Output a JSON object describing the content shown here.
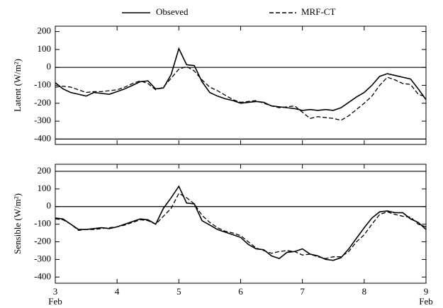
{
  "chart_data": [
    {
      "type": "line",
      "ylabel": "Latent (W/m²)",
      "legend": true,
      "x": [
        3,
        3.125,
        3.25,
        3.375,
        3.5,
        3.625,
        3.75,
        3.875,
        4,
        4.125,
        4.25,
        4.375,
        4.5,
        4.625,
        4.75,
        4.875,
        5,
        5.125,
        5.25,
        5.375,
        5.5,
        5.625,
        5.75,
        5.875,
        6,
        6.125,
        6.25,
        6.375,
        6.5,
        6.625,
        6.75,
        6.875,
        7,
        7.125,
        7.25,
        7.375,
        7.5,
        7.625,
        7.75,
        7.875,
        8,
        8.125,
        8.25,
        8.375,
        8.5,
        8.625,
        8.75,
        8.875,
        9
      ],
      "xlim": [
        3,
        9
      ],
      "xticks": [
        3,
        4,
        5,
        6,
        7,
        8,
        9
      ],
      "ylim": [
        -430,
        230
      ],
      "yticks": [
        200,
        100,
        0,
        -100,
        -200,
        -300,
        -400
      ],
      "hlines": [
        0,
        -400
      ],
      "series": [
        {
          "name": "Obseved",
          "color": "#000000",
          "dash": false,
          "values": [
            -85,
            -120,
            -140,
            -150,
            -160,
            -140,
            -145,
            -150,
            -135,
            -120,
            -100,
            -80,
            -75,
            -120,
            -115,
            -40,
            105,
            15,
            10,
            -80,
            -140,
            -160,
            -175,
            -185,
            -200,
            -195,
            -190,
            -195,
            -215,
            -220,
            -225,
            -230,
            -240,
            -235,
            -240,
            -235,
            -240,
            -225,
            -195,
            -165,
            -140,
            -100,
            -50,
            -35,
            -45,
            -55,
            -65,
            -120,
            -180
          ]
        },
        {
          "name": "MRF-CT",
          "color": "#000000",
          "dash": true,
          "values": [
            -110,
            -105,
            -110,
            -125,
            -140,
            -135,
            -135,
            -130,
            -125,
            -110,
            -90,
            -75,
            -90,
            -125,
            -110,
            -60,
            -10,
            5,
            -20,
            -70,
            -110,
            -130,
            -155,
            -180,
            -195,
            -190,
            -185,
            -200,
            -215,
            -225,
            -220,
            -215,
            -250,
            -285,
            -275,
            -280,
            -285,
            -295,
            -270,
            -235,
            -200,
            -160,
            -100,
            -55,
            -70,
            -90,
            -95,
            -150,
            -165
          ]
        }
      ]
    },
    {
      "type": "line",
      "ylabel": "Sensible (W/m²)",
      "x": [
        3,
        3.125,
        3.25,
        3.375,
        3.5,
        3.625,
        3.75,
        3.875,
        4,
        4.125,
        4.25,
        4.375,
        4.5,
        4.625,
        4.75,
        4.875,
        5,
        5.125,
        5.25,
        5.375,
        5.5,
        5.625,
        5.75,
        5.875,
        6,
        6.125,
        6.25,
        6.375,
        6.5,
        6.625,
        6.75,
        6.875,
        7,
        7.125,
        7.25,
        7.375,
        7.5,
        7.625,
        7.75,
        7.875,
        8,
        8.125,
        8.25,
        8.375,
        8.5,
        8.625,
        8.75,
        8.875,
        9
      ],
      "xlim": [
        3,
        9
      ],
      "xticks": [
        3,
        4,
        5,
        6,
        7,
        8,
        9
      ],
      "x_month_labels": [
        {
          "x": 3,
          "label": "Feb"
        },
        {
          "x": 9,
          "label": "Feb"
        }
      ],
      "ylim": [
        -435,
        240
      ],
      "yticks": [
        200,
        100,
        0,
        -100,
        -200,
        -300,
        -400
      ],
      "hlines": [
        200,
        0
      ],
      "series": [
        {
          "color": "#000000",
          "dash": false,
          "values": [
            -65,
            -70,
            -100,
            -130,
            -130,
            -125,
            -120,
            -125,
            -115,
            -100,
            -85,
            -70,
            -75,
            -100,
            -10,
            50,
            115,
            20,
            15,
            -80,
            -105,
            -130,
            -145,
            -160,
            -175,
            -215,
            -240,
            -245,
            -280,
            -295,
            -260,
            -255,
            -240,
            -270,
            -280,
            -300,
            -305,
            -290,
            -240,
            -180,
            -120,
            -65,
            -30,
            -25,
            -35,
            -35,
            -70,
            -90,
            -130
          ]
        },
        {
          "color": "#000000",
          "dash": true,
          "values": [
            -70,
            -75,
            -100,
            -135,
            -130,
            -130,
            -125,
            -120,
            -115,
            -105,
            -90,
            -75,
            -80,
            -100,
            -55,
            -10,
            75,
            50,
            15,
            -50,
            -90,
            -120,
            -140,
            -150,
            -165,
            -200,
            -235,
            -250,
            -265,
            -255,
            -250,
            -255,
            -275,
            -270,
            -285,
            -295,
            -285,
            -285,
            -255,
            -200,
            -160,
            -100,
            -45,
            -30,
            -45,
            -55,
            -60,
            -100,
            -115
          ]
        }
      ]
    }
  ]
}
